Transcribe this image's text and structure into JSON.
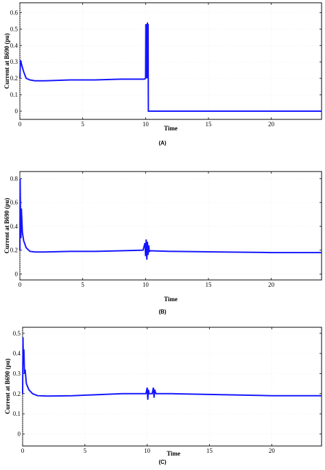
{
  "figure": {
    "panel_labels": [
      "(A)",
      "(B)",
      "(C)"
    ]
  },
  "chart_data": [
    {
      "type": "line",
      "panel": "(A)",
      "xlabel": "Time",
      "ylabel": "Current at B690 (pu)",
      "xlim": [
        0,
        24
      ],
      "ylim": [
        -0.05,
        0.66
      ],
      "xticks": [
        0,
        5,
        10,
        15,
        20
      ],
      "yticks": [
        0,
        0.1,
        0.2,
        0.3,
        0.4,
        0.5,
        0.6
      ],
      "color": "#1414ff",
      "series": [
        {
          "x": [
            0,
            0.05,
            0.15,
            0.3,
            0.5,
            0.8,
            1.2,
            2,
            4,
            6,
            8,
            9.9,
            10,
            10.02,
            10.05,
            10.1,
            10.12,
            10.15,
            10.18,
            10.2,
            10.22,
            10.25,
            12,
            16,
            20,
            24
          ],
          "y": [
            0.2,
            0.31,
            0.28,
            0.24,
            0.2,
            0.19,
            0.185,
            0.185,
            0.19,
            0.19,
            0.195,
            0.195,
            0.2,
            0.53,
            0.2,
            0.53,
            0.2,
            0.54,
            0.2,
            0.53,
            0,
            0,
            0,
            0,
            0,
            0
          ]
        }
      ]
    },
    {
      "type": "line",
      "panel": "(B)",
      "xlabel": "Time",
      "ylabel": "Current at B690 (pu)",
      "xlim": [
        0,
        24
      ],
      "ylim": [
        -0.05,
        0.86
      ],
      "xticks": [
        0,
        5,
        10,
        15,
        20
      ],
      "yticks": [
        0,
        0.2,
        0.4,
        0.6,
        0.8
      ],
      "color": "#1414ff",
      "series": [
        {
          "x": [
            0,
            0.02,
            0.05,
            0.08,
            0.12,
            0.2,
            0.3,
            0.5,
            0.8,
            1.2,
            2,
            4,
            6,
            8,
            9.8,
            9.95,
            10,
            10.05,
            10.1,
            10.15,
            10.2,
            10.25,
            10.3,
            10.4,
            12,
            16,
            20,
            24
          ],
          "y": [
            0.2,
            0.8,
            0.5,
            0.3,
            0.55,
            0.35,
            0.28,
            0.22,
            0.19,
            0.185,
            0.185,
            0.19,
            0.19,
            0.195,
            0.2,
            0.26,
            0.15,
            0.29,
            0.12,
            0.27,
            0.16,
            0.24,
            0.19,
            0.195,
            0.19,
            0.185,
            0.18,
            0.18
          ]
        }
      ]
    },
    {
      "type": "line",
      "panel": "(C)",
      "xlabel": "Time",
      "ylabel": "Current at B690 (pu)",
      "xlim": [
        0,
        24
      ],
      "ylim": [
        -0.06,
        0.53
      ],
      "xticks": [
        0,
        5,
        10,
        15,
        20
      ],
      "yticks": [
        0,
        0.1,
        0.2,
        0.3,
        0.4,
        0.5
      ],
      "color": "#1414ff",
      "series": [
        {
          "x": [
            0,
            0.03,
            0.06,
            0.1,
            0.15,
            0.2,
            0.3,
            0.5,
            0.8,
            1.2,
            2,
            4,
            6,
            8,
            9.9,
            10,
            10.05,
            10.1,
            10.15,
            10.3,
            10.4,
            10.5,
            10.55,
            10.6,
            10.7,
            12,
            16,
            20,
            24
          ],
          "y": [
            0.2,
            0.48,
            0.35,
            0.42,
            0.3,
            0.32,
            0.25,
            0.22,
            0.2,
            0.19,
            0.188,
            0.19,
            0.195,
            0.2,
            0.2,
            0.23,
            0.17,
            0.22,
            0.2,
            0.2,
            0.2,
            0.23,
            0.18,
            0.22,
            0.2,
            0.2,
            0.195,
            0.19,
            0.19
          ]
        }
      ]
    }
  ]
}
